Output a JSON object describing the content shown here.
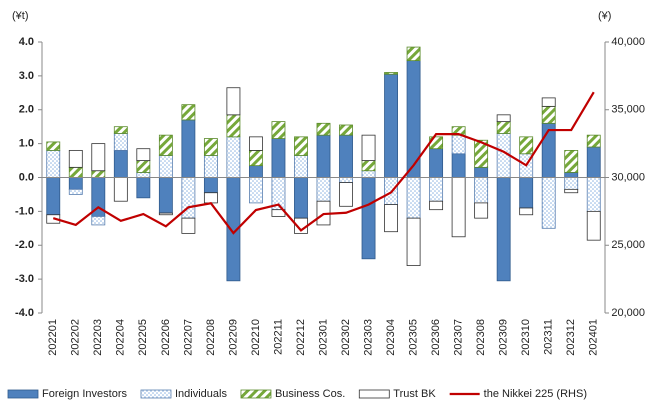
{
  "chart_data": {
    "type": "bar",
    "y_label": "(¥t)",
    "y2_label": "(¥)",
    "categories": [
      "202201",
      "202202",
      "202203",
      "202204",
      "202205",
      "202206",
      "202207",
      "202208",
      "202209",
      "202210",
      "202211",
      "202212",
      "202301",
      "202302",
      "202303",
      "202304",
      "202305",
      "202306",
      "202307",
      "202308",
      "202309",
      "202310",
      "202311",
      "202312",
      "202401"
    ],
    "series": [
      {
        "name": "Foreign Investors",
        "color": "#4f81bd",
        "values": [
          -1.1,
          -0.35,
          -1.15,
          0.8,
          -0.6,
          -1.05,
          1.7,
          -0.45,
          -3.05,
          0.35,
          1.15,
          -1.2,
          1.25,
          1.25,
          -2.4,
          3.05,
          3.45,
          0.85,
          0.7,
          0.3,
          -3.05,
          -0.9,
          1.6,
          0.15,
          0.9
        ]
      },
      {
        "name": "Individuals",
        "color": "#8db4e2",
        "values": [
          0.8,
          -0.15,
          -0.25,
          0.5,
          0.15,
          0.65,
          -1.2,
          0.65,
          1.2,
          -0.75,
          -0.95,
          0.65,
          -0.7,
          -0.15,
          0.2,
          -0.8,
          -1.2,
          -0.7,
          0.55,
          -0.75,
          1.3,
          0.7,
          -1.5,
          -0.35,
          -1.0
        ]
      },
      {
        "name": "Business Cos.",
        "color": "#76a83a",
        "values": [
          0.25,
          0.3,
          0.2,
          0.2,
          0.35,
          0.6,
          0.45,
          0.5,
          0.65,
          0.45,
          0.5,
          0.55,
          0.35,
          0.3,
          0.3,
          0.05,
          0.4,
          0.35,
          0.25,
          0.8,
          0.35,
          0.5,
          0.5,
          0.65,
          0.35
        ]
      },
      {
        "name": "Trust BK",
        "color": "#ffffff",
        "values": [
          -0.25,
          0.5,
          0.8,
          -0.7,
          0.35,
          -0.05,
          -0.45,
          -0.3,
          0.8,
          0.4,
          -0.2,
          -0.45,
          -0.7,
          -0.7,
          0.75,
          -0.8,
          -1.4,
          -0.25,
          -1.75,
          -0.45,
          0.2,
          -0.2,
          0.25,
          -0.1,
          -0.85
        ]
      },
      {
        "name": "the Nikkei 225 (RHS)",
        "color": "#c00000",
        "type": "line",
        "axis": "y2",
        "values": [
          27000,
          26500,
          27800,
          26800,
          27300,
          26400,
          27800,
          28100,
          25900,
          27600,
          28000,
          26100,
          27300,
          27400,
          28000,
          28900,
          30900,
          33200,
          33200,
          32600,
          31900,
          30900,
          33500,
          33500,
          36300
        ]
      }
    ],
    "ylim": [
      -4,
      4
    ],
    "yticks": [
      {
        "value": -4,
        "label": "-4.0"
      },
      {
        "value": -3,
        "label": "-3.0"
      },
      {
        "value": -2,
        "label": "-2.0"
      },
      {
        "value": -1,
        "label": "-1.0"
      },
      {
        "value": 0,
        "label": "0.0"
      },
      {
        "value": 1,
        "label": "1.0"
      },
      {
        "value": 2,
        "label": "2.0"
      },
      {
        "value": 3,
        "label": "3.0"
      },
      {
        "value": 4,
        "label": "4.0"
      }
    ],
    "y2lim": [
      20000,
      40000
    ],
    "y2ticks": [
      {
        "value": 20000,
        "label": "20,000"
      },
      {
        "value": 25000,
        "label": "25,000"
      },
      {
        "value": 30000,
        "label": "30,000"
      },
      {
        "value": 35000,
        "label": "35,000"
      },
      {
        "value": 40000,
        "label": "40,000"
      }
    ],
    "legend": "bottom"
  }
}
